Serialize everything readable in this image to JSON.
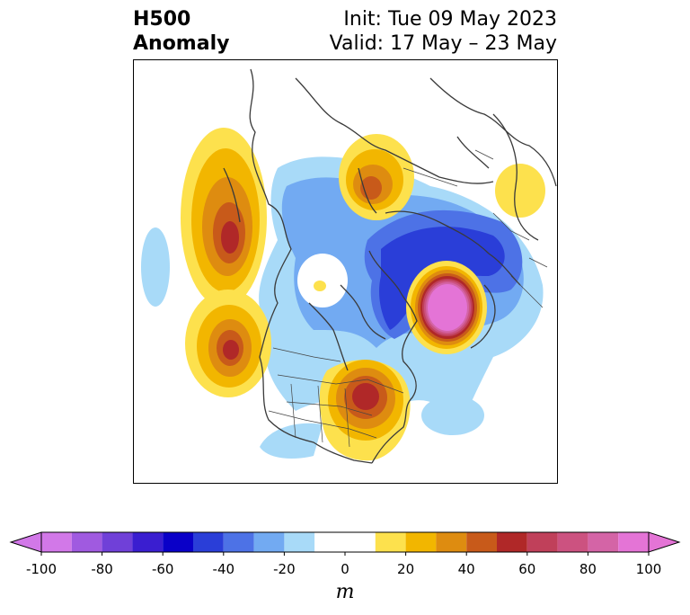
{
  "title": {
    "left_line1": "H500",
    "left_line2": "Anomaly",
    "right_line1": "Init: Tue 09 May 2023",
    "right_line2": "Valid: 17 May – 23 May"
  },
  "colorbar": {
    "unit": "m",
    "ticks": [
      "-100",
      "-80",
      "-60",
      "-40",
      "-20",
      "0",
      "20",
      "40",
      "60",
      "80",
      "100"
    ],
    "levels": [
      -100,
      -90,
      -80,
      -70,
      -60,
      -50,
      -40,
      -30,
      -20,
      -10,
      10,
      20,
      30,
      40,
      50,
      60,
      70,
      80,
      90,
      100
    ],
    "colors": [
      "#d278e8",
      "#a05ae0",
      "#7040d8",
      "#3a1ed0",
      "#0a00c8",
      "#2a3ed8",
      "#4d72e6",
      "#72aaf2",
      "#a8daf8",
      "#ffffff",
      "#fde14d",
      "#f2b600",
      "#de8c10",
      "#c85a1a",
      "#b02828",
      "#c0405a",
      "#cc5280",
      "#d464a6",
      "#e474d6"
    ],
    "extend": "both"
  },
  "anomalies": [
    {
      "name": "eastern-north-america-ridge",
      "peak_m": 60,
      "sign": "positive"
    },
    {
      "name": "north-atlantic-ridge",
      "peak_m": 100,
      "sign": "positive"
    },
    {
      "name": "northeast-pacific-ridge-north",
      "peak_m": 60,
      "sign": "positive"
    },
    {
      "name": "northeast-pacific-ridge-south",
      "peak_m": 60,
      "sign": "positive"
    },
    {
      "name": "east-siberia-ridge",
      "peak_m": 50,
      "sign": "positive"
    },
    {
      "name": "europe-ridge",
      "peak_m": 20,
      "sign": "positive"
    },
    {
      "name": "canadian-arctic-trough",
      "peak_m": -60,
      "sign": "negative"
    },
    {
      "name": "alaska-trough",
      "peak_m": -30,
      "sign": "negative"
    },
    {
      "name": "atlantic-trough",
      "peak_m": -20,
      "sign": "negative"
    }
  ]
}
